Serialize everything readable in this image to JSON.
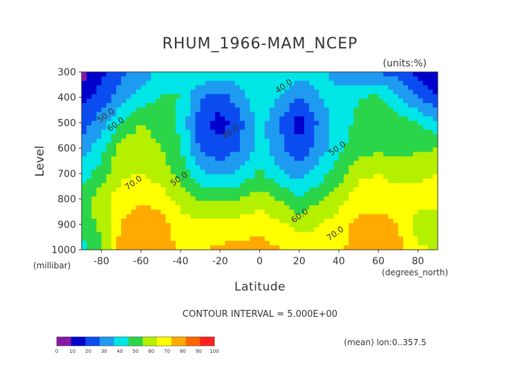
{
  "chart_data": {
    "type": "heatmap",
    "title": "RHUM_1966-MAM_NCEP",
    "units_label": "(units:%)",
    "ylabel": "Level",
    "ylabel_unit": "(millibar)",
    "xlabel": "Latitude",
    "xlabel_unit": "(degrees_north)",
    "x_ticks": [
      -80,
      -60,
      -40,
      -20,
      0,
      20,
      40,
      60,
      80
    ],
    "y_ticks": [
      300,
      400,
      500,
      600,
      700,
      800,
      900,
      1000
    ],
    "xlim": [
      -90,
      90
    ],
    "ylim": [
      300,
      1000
    ],
    "y_inverted": true,
    "contour_interval_text": "CONTOUR INTERVAL = 5.000E+00",
    "footnote": "(mean) lon:0..357.5",
    "colorbar": {
      "ticks": [
        "0",
        "10",
        "20",
        "30",
        "40",
        "50",
        "60",
        "70",
        "80",
        "90",
        "100"
      ],
      "colors": [
        "#8a1aa6",
        "#0000cc",
        "#0a4cf0",
        "#1e9bf0",
        "#00e6e6",
        "#2ad54a",
        "#b4f000",
        "#ffff00",
        "#ffaa00",
        "#ff6600",
        "#ff2020"
      ]
    },
    "contour_labels": [
      {
        "text": "40.0",
        "lat": 13,
        "lev": 365
      },
      {
        "text": "40.0",
        "lat": -14,
        "lev": 545
      },
      {
        "text": "50.0",
        "lat": -77,
        "lev": 480
      },
      {
        "text": "60.0",
        "lat": -72,
        "lev": 515
      },
      {
        "text": "50.0",
        "lat": -40,
        "lev": 730
      },
      {
        "text": "50.0",
        "lat": 40,
        "lev": 610
      },
      {
        "text": "70.0",
        "lat": -63,
        "lev": 745
      },
      {
        "text": "60.0",
        "lat": 21,
        "lev": 875
      },
      {
        "text": "70.0",
        "lat": 39,
        "lev": 945
      }
    ],
    "field": {
      "lats": [
        -90,
        -80,
        -70,
        -60,
        -50,
        -40,
        -30,
        -20,
        -10,
        0,
        10,
        20,
        30,
        40,
        50,
        60,
        70,
        80,
        90
      ],
      "levels": [
        300,
        400,
        500,
        600,
        700,
        800,
        900,
        1000
      ],
      "values": [
        [
          5,
          18,
          28,
          35,
          42,
          48,
          50,
          45,
          46,
          50,
          48,
          46,
          45,
          35,
          30,
          30,
          25,
          15,
          10
        ],
        [
          18,
          24,
          35,
          44,
          51,
          50,
          30,
          26,
          35,
          48,
          40,
          28,
          40,
          45,
          50,
          52,
          42,
          30,
          20
        ],
        [
          25,
          35,
          50,
          60,
          55,
          48,
          25,
          15,
          27,
          45,
          30,
          15,
          32,
          46,
          52,
          55,
          55,
          50,
          42
        ],
        [
          35,
          46,
          66,
          66,
          60,
          50,
          28,
          23,
          30,
          45,
          33,
          22,
          34,
          48,
          55,
          58,
          56,
          58,
          60
        ],
        [
          45,
          55,
          68,
          70,
          66,
          57,
          42,
          38,
          42,
          52,
          42,
          35,
          45,
          55,
          68,
          70,
          66,
          68,
          70
        ],
        [
          55,
          66,
          75,
          78,
          75,
          66,
          59,
          58,
          60,
          66,
          59,
          52,
          58,
          66,
          75,
          76,
          76,
          74,
          75
        ],
        [
          55,
          62,
          80,
          88,
          85,
          75,
          72,
          72,
          74,
          76,
          72,
          66,
          70,
          75,
          83,
          84,
          80,
          65,
          60
        ],
        [
          45,
          60,
          85,
          90,
          85,
          78,
          80,
          82,
          84,
          84,
          81,
          76,
          75,
          78,
          85,
          84,
          83,
          72,
          70
        ]
      ]
    }
  }
}
